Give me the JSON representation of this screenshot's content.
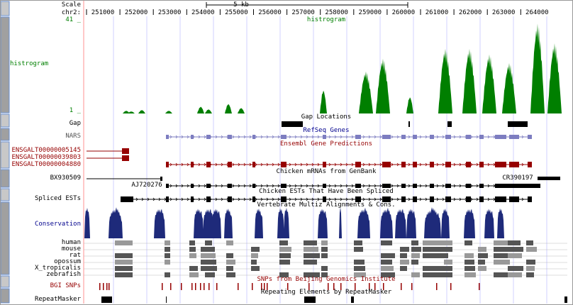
{
  "scale": {
    "label": "Scale",
    "value": "5 kb"
  },
  "chrom": "chr2:",
  "ruler_ticks": [
    "251000",
    "252000",
    "253000",
    "254000",
    "255000",
    "256000",
    "257000",
    "258000",
    "259000",
    "260000",
    "261000",
    "262000",
    "263000",
    "264000"
  ],
  "histogram": {
    "title": "histrogram",
    "side_label": "histrogram",
    "ymax": "41 _",
    "ymin": "1 _",
    "color": "#007f00"
  },
  "gap": {
    "title": "Gap Locations",
    "label": "Gap"
  },
  "refseq": {
    "title": "RefSeq Genes",
    "label": "NARS",
    "color": "#7d7dc0"
  },
  "ensembl": {
    "title": "Ensembl Gene Predictions",
    "labels": [
      "ENSGALT00000005145",
      "ENSGALT00000039803",
      "ENSGALT00000004880"
    ],
    "color": "#960000"
  },
  "mrna": {
    "title": "Chicken mRNAs from GenBank",
    "labels": [
      "BX930509",
      "AJ720276",
      "CR390197"
    ]
  },
  "ests": {
    "title": "Chicken ESTs That Have Been Spliced",
    "label": "Spliced ESTs"
  },
  "cons": {
    "title": "Vertebrate Multiz Alignments & Cons.",
    "label": "Conservation",
    "species": [
      "human",
      "mouse",
      "rat",
      "opossum",
      "X_tropicalis",
      "zebrafish"
    ],
    "color": "#1e2a7a"
  },
  "snps": {
    "title": "SNPs from Beijing Genomics Institute",
    "label": "BGI SNPs",
    "color": "#960000"
  },
  "rmsk": {
    "title": "Repeating Elements by RepeatMasker",
    "label": "RepeatMasker"
  },
  "colors": {
    "side_button": "#a0a0a0",
    "side_button_light": "#c8c8c8",
    "grid": "#d0d0ff",
    "guide_red": "#ff9090"
  }
}
